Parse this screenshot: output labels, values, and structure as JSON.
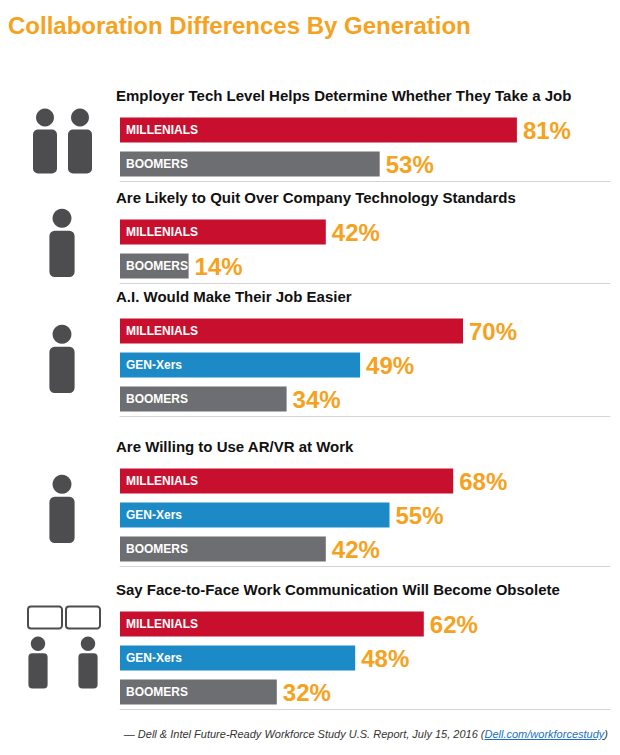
{
  "title": "Collaboration Differences By Generation",
  "source": "— Dell & Intel Future-Ready Workforce Study U.S. Report, July 15, 2016 (Dell.com/workforcestudy)",
  "chart_data": [
    {
      "type": "bar",
      "orientation": "horizontal",
      "title": "Employer Tech Level Helps Determine Whether They Take a Job",
      "categories": [
        "MILLENIALS",
        "BOOMERS"
      ],
      "values": [
        81,
        53
      ],
      "value_labels": [
        "81%",
        "53%"
      ],
      "colors": [
        "#c8102e",
        "#6d6e71"
      ],
      "xlim": [
        0,
        100
      ],
      "tick_labels": "y",
      "data_labels": true,
      "grid": false
    },
    {
      "type": "bar",
      "orientation": "horizontal",
      "title": "Are Likely to Quit Over Company Technology Standards",
      "categories": [
        "MILLENIALS",
        "BOOMERS"
      ],
      "values": [
        42,
        14
      ],
      "value_labels": [
        "42%",
        "14%"
      ],
      "colors": [
        "#c8102e",
        "#6d6e71"
      ],
      "xlim": [
        0,
        100
      ],
      "tick_labels": "y",
      "data_labels": true,
      "grid": false
    },
    {
      "type": "bar",
      "orientation": "horizontal",
      "title": "A.I. Would Make Their Job Easier",
      "categories": [
        "MILLENIALS",
        "GEN-Xers",
        "BOOMERS"
      ],
      "values": [
        70,
        49,
        34
      ],
      "value_labels": [
        "70%",
        "49%",
        "34%"
      ],
      "colors": [
        "#c8102e",
        "#1b8ac6",
        "#6d6e71"
      ],
      "xlim": [
        0,
        100
      ],
      "tick_labels": "y",
      "data_labels": true,
      "grid": false
    },
    {
      "type": "bar",
      "orientation": "horizontal",
      "title": "Are Willing to Use AR/VR at Work",
      "categories": [
        "MILLENIALS",
        "GEN-Xers",
        "BOOMERS"
      ],
      "values": [
        68,
        55,
        42
      ],
      "value_labels": [
        "68%",
        "55%",
        "42%"
      ],
      "colors": [
        "#c8102e",
        "#1b8ac6",
        "#6d6e71"
      ],
      "xlim": [
        0,
        100
      ],
      "tick_labels": "y",
      "data_labels": true,
      "grid": false
    },
    {
      "type": "bar",
      "orientation": "horizontal",
      "title": "Say Face-to-Face Work Communication Will Become Obsolete",
      "categories": [
        "MILLENIALS",
        "GEN-Xers",
        "BOOMERS"
      ],
      "values": [
        62,
        48,
        32
      ],
      "value_labels": [
        "62%",
        "48%",
        "32%"
      ],
      "colors": [
        "#c8102e",
        "#1b8ac6",
        "#6d6e71"
      ],
      "xlim": [
        0,
        100
      ],
      "tick_labels": "y",
      "data_labels": true,
      "grid": false
    }
  ]
}
